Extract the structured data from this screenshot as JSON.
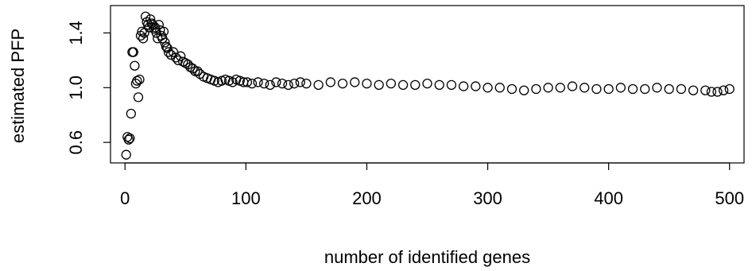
{
  "chart_data": {
    "type": "scatter",
    "title": "",
    "xlabel": "number of identified genes",
    "ylabel": "estimated PFP",
    "xlim": [
      -12,
      512
    ],
    "ylim": [
      0.45,
      1.6
    ],
    "xticks": [
      0,
      100,
      200,
      300,
      400,
      500
    ],
    "yticks": [
      0.6,
      1.0,
      1.4
    ],
    "xtick_labels": [
      "0",
      "100",
      "200",
      "300",
      "400",
      "500"
    ],
    "ytick_labels": [
      "0.6",
      "1.0",
      "1.4"
    ],
    "grid": false,
    "legend": "none",
    "marker": "open-circle",
    "colors": {
      "points": "#000000",
      "axes": "#000000",
      "background": "#ffffff"
    },
    "series": [
      {
        "x": [
          1,
          2,
          3,
          4,
          5,
          6,
          7,
          8,
          9,
          10,
          11,
          12,
          13,
          14,
          15,
          16,
          17,
          18,
          19,
          20,
          21,
          22,
          23,
          24,
          25,
          26,
          27,
          28,
          29,
          30,
          31,
          32,
          33,
          34,
          35,
          36,
          38,
          40,
          42,
          44,
          46,
          48,
          50,
          52,
          54,
          56,
          58,
          60,
          62,
          65,
          68,
          71,
          74,
          77,
          80,
          83,
          86,
          89,
          92,
          95,
          98,
          101,
          105,
          110,
          115,
          120,
          125,
          130,
          135,
          140,
          145,
          150,
          160,
          170,
          180,
          190,
          200,
          210,
          220,
          230,
          240,
          250,
          260,
          270,
          280,
          290,
          300,
          310,
          320,
          330,
          340,
          350,
          360,
          370,
          380,
          390,
          400,
          410,
          420,
          430,
          440,
          450,
          460,
          470,
          480,
          485,
          490,
          495,
          500
        ],
        "y": [
          0.51,
          0.64,
          0.62,
          0.63,
          0.81,
          1.26,
          1.26,
          1.16,
          1.03,
          1.05,
          0.93,
          1.06,
          1.38,
          1.41,
          1.36,
          1.4,
          1.52,
          1.48,
          1.46,
          1.44,
          1.5,
          1.47,
          1.46,
          1.43,
          1.44,
          1.4,
          1.36,
          1.46,
          1.42,
          1.38,
          1.36,
          1.41,
          1.33,
          1.3,
          1.29,
          1.26,
          1.24,
          1.26,
          1.22,
          1.2,
          1.23,
          1.19,
          1.18,
          1.17,
          1.15,
          1.14,
          1.12,
          1.12,
          1.1,
          1.08,
          1.07,
          1.06,
          1.05,
          1.04,
          1.05,
          1.06,
          1.05,
          1.04,
          1.06,
          1.05,
          1.04,
          1.04,
          1.03,
          1.04,
          1.03,
          1.02,
          1.04,
          1.03,
          1.02,
          1.03,
          1.04,
          1.03,
          1.02,
          1.04,
          1.03,
          1.04,
          1.03,
          1.02,
          1.03,
          1.02,
          1.02,
          1.03,
          1.02,
          1.02,
          1.01,
          1.01,
          1.0,
          1.0,
          0.99,
          0.98,
          0.99,
          1.0,
          1.0,
          1.01,
          1.0,
          0.99,
          0.99,
          1.0,
          0.99,
          0.99,
          1.0,
          0.99,
          0.99,
          0.98,
          0.98,
          0.97,
          0.97,
          0.98,
          0.99
        ]
      }
    ]
  }
}
